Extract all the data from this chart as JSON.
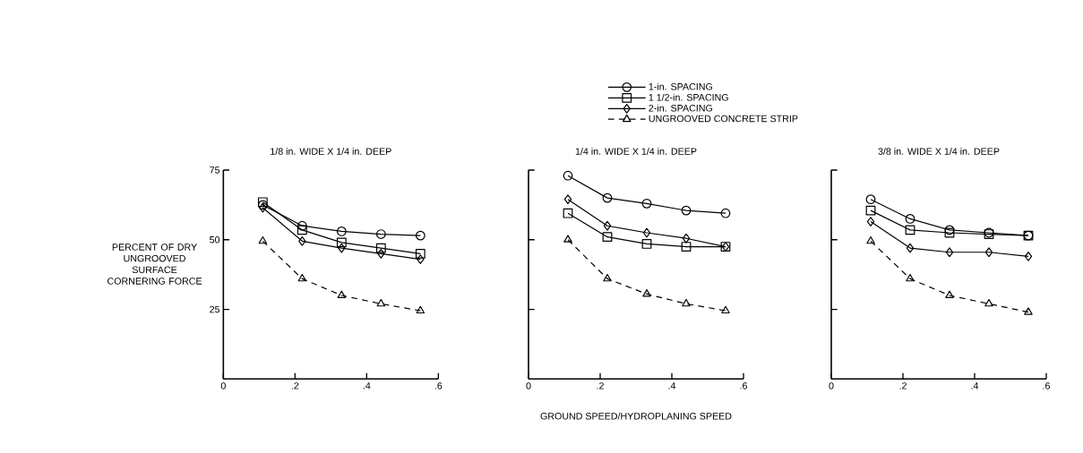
{
  "chart_data": [
    {
      "type": "line",
      "title": "1/8 in. WIDE X 1/4 in. DEEP",
      "ylabel": "PERCENT OF DRY UNGROOVED SURFACE CORNERING FORCE",
      "x": [
        0.11,
        0.22,
        0.33,
        0.44,
        0.55
      ],
      "xlim": [
        0,
        0.6
      ],
      "ylim": [
        0,
        75
      ],
      "xticks": [
        0,
        {
          "value": 0.2,
          "label": ".2"
        },
        {
          "value": 0.4,
          "label": ".4"
        },
        {
          "value": 0.6,
          "label": ".6"
        }
      ],
      "yticks": [
        25,
        50,
        75
      ],
      "grid": false,
      "legend": false,
      "series": [
        {
          "color": "#000000",
          "marker": "circle",
          "line_style": "solid",
          "values": [
            62.5,
            55,
            53,
            52,
            51.5
          ]
        },
        {
          "color": "#000000",
          "marker": "square",
          "line_style": "solid",
          "values": [
            63.5,
            53.5,
            49,
            47,
            45
          ]
        },
        {
          "color": "#000000",
          "marker": "diamond",
          "line_style": "solid",
          "values": [
            61.5,
            49.5,
            47,
            45,
            43
          ]
        },
        {
          "color": "#000000",
          "marker": "triangle",
          "line_style": "dashed",
          "values": [
            49.5,
            36,
            30,
            27,
            24.5
          ]
        }
      ]
    },
    {
      "type": "line",
      "title": "1/4 in. WIDE X 1/4 in. DEEP",
      "xlabel": "GROUND SPEED/HYDROPLANING SPEED",
      "x": [
        0.11,
        0.22,
        0.33,
        0.44,
        0.55
      ],
      "xlim": [
        0,
        0.6
      ],
      "ylim": [
        0,
        75
      ],
      "xticks": [
        0,
        {
          "value": 0.2,
          "label": ".2"
        },
        {
          "value": 0.4,
          "label": ".4"
        },
        {
          "value": 0.6,
          "label": ".6"
        }
      ],
      "yticks": [
        25,
        50,
        75
      ],
      "tick_labels": "x",
      "grid": false,
      "legend": "top",
      "series": [
        {
          "name": "1-in. SPACING",
          "color": "#000000",
          "marker": "circle",
          "line_style": "solid",
          "values": [
            73,
            65,
            63,
            60.5,
            59.5
          ]
        },
        {
          "name": "1 1/2-in. SPACING",
          "color": "#000000",
          "marker": "square",
          "line_style": "solid",
          "values": [
            59.5,
            51,
            48.5,
            47.5,
            47.5
          ]
        },
        {
          "name": "2-in. SPACING",
          "color": "#000000",
          "marker": "diamond",
          "line_style": "solid",
          "values": [
            64.5,
            55,
            52.5,
            50.5,
            47.5
          ]
        },
        {
          "name": "UNGROOVED CONCRETE STRIP",
          "color": "#000000",
          "marker": "triangle",
          "line_style": "dashed",
          "values": [
            50,
            36,
            30.5,
            27,
            24.5
          ]
        }
      ]
    },
    {
      "type": "line",
      "title": "3/8 in. WIDE X 1/4 in. DEEP",
      "x": [
        0.11,
        0.22,
        0.33,
        0.44,
        0.55
      ],
      "xlim": [
        0,
        0.6
      ],
      "ylim": [
        0,
        75
      ],
      "xticks": [
        0,
        {
          "value": 0.2,
          "label": ".2"
        },
        {
          "value": 0.4,
          "label": ".4"
        },
        {
          "value": 0.6,
          "label": ".6"
        }
      ],
      "yticks": [
        25,
        50,
        75
      ],
      "tick_labels": "x",
      "grid": false,
      "legend": false,
      "series": [
        {
          "color": "#000000",
          "marker": "circle",
          "line_style": "solid",
          "values": [
            64.5,
            57.5,
            53.5,
            52.5,
            51.5
          ]
        },
        {
          "color": "#000000",
          "marker": "square",
          "line_style": "solid",
          "values": [
            60.5,
            53.5,
            52.5,
            52,
            51.5
          ]
        },
        {
          "color": "#000000",
          "marker": "diamond",
          "line_style": "solid",
          "values": [
            56.5,
            47,
            45.5,
            45.5,
            44
          ]
        },
        {
          "color": "#000000",
          "marker": "triangle",
          "line_style": "dashed",
          "values": [
            49.5,
            36,
            30,
            27,
            24
          ]
        }
      ]
    }
  ]
}
